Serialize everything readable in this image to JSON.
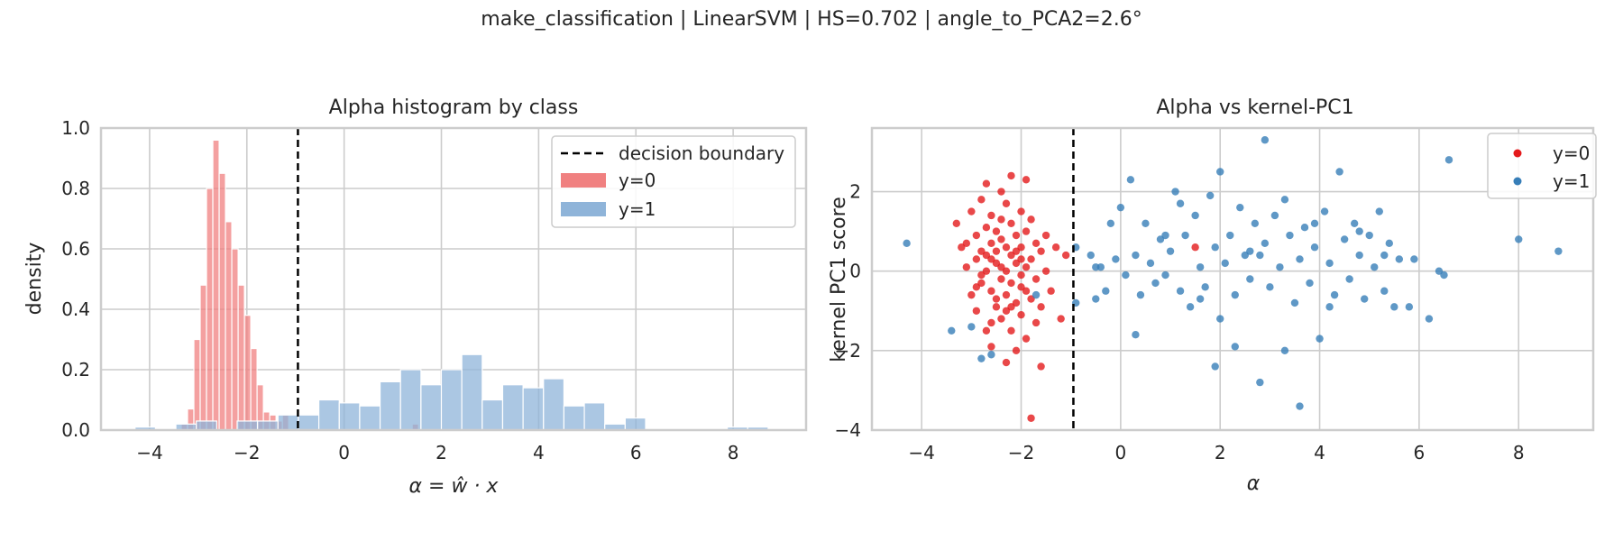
{
  "suptitle": "make_classification | LinearSVM | HS=0.702 | angle_to_PCA2=2.6°",
  "colors": {
    "class0_bar": "#f08080",
    "class1_bar": "#8fb4d9",
    "class0_point": "#e41a1c",
    "class1_point": "#377eb8",
    "grid": "#cccccc",
    "boundary": "#000000"
  },
  "chart_data": [
    {
      "type": "histogram",
      "title": "Alpha histogram by class",
      "xlabel": "α = ŵ · x",
      "ylabel": "density",
      "xlim": [
        -5.0,
        9.5
      ],
      "ylim": [
        0,
        1.0
      ],
      "xticks": [
        -4,
        -2,
        0,
        2,
        4,
        6,
        8
      ],
      "xtick_labels": [
        "−4",
        "−2",
        "0",
        "2",
        "4",
        "6",
        "8"
      ],
      "yticks": [
        0,
        0.2,
        0.4,
        0.6,
        0.8,
        1.0
      ],
      "ytick_labels": [
        "0.0",
        "0.2",
        "0.4",
        "0.6",
        "0.8",
        "1.0"
      ],
      "grid": true,
      "legend_position": "top-right",
      "decision_boundary_x": -0.95,
      "legend": {
        "boundary_label": "decision boundary"
      },
      "series": [
        {
          "name": "y=0",
          "bins": [
            {
              "x0": -3.35,
              "x1": -3.22,
              "y": 0.02
            },
            {
              "x0": -3.22,
              "x1": -3.09,
              "y": 0.07
            },
            {
              "x0": -3.09,
              "x1": -2.96,
              "y": 0.3
            },
            {
              "x0": -2.96,
              "x1": -2.83,
              "y": 0.48
            },
            {
              "x0": -2.83,
              "x1": -2.7,
              "y": 0.8
            },
            {
              "x0": -2.7,
              "x1": -2.57,
              "y": 0.96
            },
            {
              "x0": -2.57,
              "x1": -2.44,
              "y": 0.85
            },
            {
              "x0": -2.44,
              "x1": -2.31,
              "y": 0.69
            },
            {
              "x0": -2.31,
              "x1": -2.18,
              "y": 0.6
            },
            {
              "x0": -2.18,
              "x1": -2.05,
              "y": 0.48
            },
            {
              "x0": -2.05,
              "x1": -1.92,
              "y": 0.38
            },
            {
              "x0": -1.92,
              "x1": -1.79,
              "y": 0.27
            },
            {
              "x0": -1.79,
              "x1": -1.66,
              "y": 0.15
            },
            {
              "x0": -1.66,
              "x1": -1.53,
              "y": 0.06
            },
            {
              "x0": -1.53,
              "x1": -1.4,
              "y": 0.05
            },
            {
              "x0": -1.4,
              "x1": -1.27,
              "y": 0.03
            },
            {
              "x0": -1.27,
              "x1": -1.14,
              "y": 0.05
            },
            {
              "x0": 1.4,
              "x1": 1.53,
              "y": 0.02
            }
          ]
        },
        {
          "name": "y=1",
          "bins": [
            {
              "x0": -4.3,
              "x1": -3.88,
              "y": 0.01
            },
            {
              "x0": -3.88,
              "x1": -3.46,
              "y": 0.0
            },
            {
              "x0": -3.46,
              "x1": -3.04,
              "y": 0.02
            },
            {
              "x0": -3.04,
              "x1": -2.62,
              "y": 0.03
            },
            {
              "x0": -2.62,
              "x1": -2.2,
              "y": 0.0
            },
            {
              "x0": -2.2,
              "x1": -1.78,
              "y": 0.03
            },
            {
              "x0": -1.78,
              "x1": -1.36,
              "y": 0.03
            },
            {
              "x0": -1.36,
              "x1": -0.94,
              "y": 0.05
            },
            {
              "x0": -0.94,
              "x1": -0.52,
              "y": 0.05
            },
            {
              "x0": -0.52,
              "x1": -0.1,
              "y": 0.1
            },
            {
              "x0": -0.1,
              "x1": 0.32,
              "y": 0.09
            },
            {
              "x0": 0.32,
              "x1": 0.74,
              "y": 0.08
            },
            {
              "x0": 0.74,
              "x1": 1.16,
              "y": 0.16
            },
            {
              "x0": 1.16,
              "x1": 1.58,
              "y": 0.2
            },
            {
              "x0": 1.58,
              "x1": 2.0,
              "y": 0.15
            },
            {
              "x0": 2.0,
              "x1": 2.42,
              "y": 0.2
            },
            {
              "x0": 2.42,
              "x1": 2.84,
              "y": 0.25
            },
            {
              "x0": 2.84,
              "x1": 3.26,
              "y": 0.1
            },
            {
              "x0": 3.26,
              "x1": 3.68,
              "y": 0.15
            },
            {
              "x0": 3.68,
              "x1": 4.1,
              "y": 0.14
            },
            {
              "x0": 4.1,
              "x1": 4.52,
              "y": 0.17
            },
            {
              "x0": 4.52,
              "x1": 4.94,
              "y": 0.08
            },
            {
              "x0": 4.94,
              "x1": 5.36,
              "y": 0.09
            },
            {
              "x0": 5.36,
              "x1": 5.78,
              "y": 0.02
            },
            {
              "x0": 5.78,
              "x1": 6.2,
              "y": 0.04
            },
            {
              "x0": 6.2,
              "x1": 6.62,
              "y": 0.0
            },
            {
              "x0": 7.88,
              "x1": 8.3,
              "y": 0.01
            },
            {
              "x0": 8.3,
              "x1": 8.72,
              "y": 0.01
            }
          ]
        }
      ]
    },
    {
      "type": "scatter",
      "title": "Alpha vs kernel-PC1",
      "xlabel": "α",
      "ylabel": "kernel PC1 score",
      "xlim": [
        -5.0,
        9.5
      ],
      "ylim": [
        -4.0,
        3.6
      ],
      "xticks": [
        -4,
        -2,
        0,
        2,
        4,
        6,
        8
      ],
      "xtick_labels": [
        "−4",
        "−2",
        "0",
        "2",
        "4",
        "6",
        "8"
      ],
      "yticks": [
        -4,
        -2,
        0,
        2
      ],
      "ytick_labels": [
        "−4",
        "−2",
        "0",
        "2"
      ],
      "grid": true,
      "legend_position": "top-right",
      "decision_boundary_x": -0.95,
      "series": [
        {
          "name": "y=0",
          "points": [
            [
              -3.3,
              1.2
            ],
            [
              -3.2,
              0.6
            ],
            [
              -3.1,
              0.1
            ],
            [
              -3.0,
              1.5
            ],
            [
              -3.0,
              -0.6
            ],
            [
              -2.9,
              0.9
            ],
            [
              -2.9,
              0.3
            ],
            [
              -2.9,
              -1.0
            ],
            [
              -2.8,
              1.8
            ],
            [
              -2.8,
              0.5
            ],
            [
              -2.8,
              -0.3
            ],
            [
              -2.7,
              1.1
            ],
            [
              -2.7,
              0.0
            ],
            [
              -2.7,
              -1.5
            ],
            [
              -2.7,
              2.2
            ],
            [
              -2.6,
              0.7
            ],
            [
              -2.6,
              -0.5
            ],
            [
              -2.6,
              1.4
            ],
            [
              -2.6,
              -1.9
            ],
            [
              -2.5,
              0.2
            ],
            [
              -2.5,
              1.0
            ],
            [
              -2.5,
              -0.9
            ],
            [
              -2.5,
              0.5
            ],
            [
              -2.4,
              2.0
            ],
            [
              -2.4,
              -0.2
            ],
            [
              -2.4,
              1.3
            ],
            [
              -2.4,
              -1.2
            ],
            [
              -2.4,
              0.8
            ],
            [
              -2.3,
              0.0
            ],
            [
              -2.3,
              1.7
            ],
            [
              -2.3,
              -0.6
            ],
            [
              -2.3,
              -2.3
            ],
            [
              -2.2,
              0.4
            ],
            [
              -2.2,
              1.2
            ],
            [
              -2.2,
              -1.5
            ],
            [
              -2.2,
              2.4
            ],
            [
              -2.2,
              -0.3
            ],
            [
              -2.1,
              0.9
            ],
            [
              -2.1,
              -0.8
            ],
            [
              -2.1,
              0.2
            ],
            [
              -2.1,
              -2.0
            ],
            [
              -2.0,
              1.5
            ],
            [
              -2.0,
              0.6
            ],
            [
              -2.0,
              -0.4
            ],
            [
              -2.0,
              -1.1
            ],
            [
              -1.9,
              0.1
            ],
            [
              -1.9,
              1.0
            ],
            [
              -1.9,
              -1.7
            ],
            [
              -1.9,
              2.3
            ],
            [
              -1.8,
              0.3
            ],
            [
              -1.8,
              -0.7
            ],
            [
              -1.8,
              1.3
            ],
            [
              -1.8,
              -3.7
            ],
            [
              -1.7,
              0.7
            ],
            [
              -1.7,
              -0.2
            ],
            [
              -1.7,
              -1.3
            ],
            [
              -1.6,
              0.5
            ],
            [
              -1.6,
              -0.9
            ],
            [
              -1.6,
              -2.4
            ],
            [
              -1.5,
              0.0
            ],
            [
              -1.5,
              0.9
            ],
            [
              -1.4,
              -0.5
            ],
            [
              -1.3,
              0.6
            ],
            [
              -1.2,
              -1.2
            ],
            [
              -1.1,
              0.4
            ],
            [
              -2.8,
              -0.1
            ],
            [
              -2.6,
              0.3
            ],
            [
              -2.5,
              -0.7
            ],
            [
              -2.3,
              0.6
            ],
            [
              -2.2,
              -0.9
            ],
            [
              -2.1,
              0.5
            ],
            [
              -2.0,
              -0.1
            ],
            [
              -1.9,
              -0.5
            ],
            [
              -2.4,
              0.1
            ],
            [
              -2.7,
              0.4
            ],
            [
              -2.9,
              -0.4
            ],
            [
              -3.1,
              0.7
            ],
            [
              -2.6,
              -1.3
            ],
            [
              -2.3,
              -1.0
            ],
            [
              -2.0,
              0.3
            ],
            [
              1.5,
              0.6
            ]
          ]
        },
        {
          "name": "y=1",
          "points": [
            [
              -4.3,
              0.7
            ],
            [
              -3.4,
              -1.5
            ],
            [
              -3.0,
              -1.4
            ],
            [
              -2.8,
              -2.2
            ],
            [
              -2.6,
              -2.1
            ],
            [
              -1.7,
              -0.6
            ],
            [
              -0.9,
              0.6
            ],
            [
              -0.9,
              -0.8
            ],
            [
              -0.6,
              0.4
            ],
            [
              -0.5,
              -0.7
            ],
            [
              -0.4,
              0.1
            ],
            [
              -0.3,
              -0.5
            ],
            [
              -0.2,
              1.2
            ],
            [
              -0.1,
              0.3
            ],
            [
              0.0,
              1.6
            ],
            [
              0.1,
              -0.1
            ],
            [
              0.3,
              -1.6
            ],
            [
              0.3,
              0.4
            ],
            [
              0.4,
              -0.6
            ],
            [
              0.5,
              1.2
            ],
            [
              0.6,
              0.2
            ],
            [
              0.7,
              -0.3
            ],
            [
              0.8,
              0.8
            ],
            [
              0.9,
              -0.1
            ],
            [
              1.0,
              0.5
            ],
            [
              1.1,
              2.0
            ],
            [
              1.2,
              -0.5
            ],
            [
              1.3,
              0.9
            ],
            [
              1.4,
              -0.9
            ],
            [
              1.5,
              1.4
            ],
            [
              1.6,
              0.1
            ],
            [
              1.7,
              -0.4
            ],
            [
              1.8,
              1.9
            ],
            [
              1.9,
              0.6
            ],
            [
              2.0,
              -1.2
            ],
            [
              2.0,
              2.5
            ],
            [
              2.1,
              0.2
            ],
            [
              2.2,
              0.9
            ],
            [
              2.3,
              -0.6
            ],
            [
              2.4,
              1.6
            ],
            [
              2.5,
              0.4
            ],
            [
              2.6,
              -0.2
            ],
            [
              2.7,
              1.2
            ],
            [
              2.8,
              -2.8
            ],
            [
              2.9,
              0.7
            ],
            [
              2.9,
              3.3
            ],
            [
              3.0,
              -0.4
            ],
            [
              3.1,
              1.4
            ],
            [
              3.2,
              0.1
            ],
            [
              3.3,
              -2.0
            ],
            [
              3.4,
              0.9
            ],
            [
              3.5,
              -0.8
            ],
            [
              3.6,
              0.3
            ],
            [
              3.6,
              -3.4
            ],
            [
              3.7,
              1.1
            ],
            [
              3.8,
              -0.3
            ],
            [
              3.9,
              0.6
            ],
            [
              4.0,
              -1.7
            ],
            [
              4.1,
              1.5
            ],
            [
              4.2,
              0.2
            ],
            [
              4.3,
              -0.6
            ],
            [
              4.4,
              2.5
            ],
            [
              4.5,
              0.8
            ],
            [
              4.6,
              -0.2
            ],
            [
              4.7,
              1.2
            ],
            [
              4.8,
              0.4
            ],
            [
              4.9,
              -0.7
            ],
            [
              5.0,
              0.9
            ],
            [
              5.1,
              0.1
            ],
            [
              5.2,
              1.5
            ],
            [
              5.3,
              -0.5
            ],
            [
              5.4,
              0.7
            ],
            [
              5.5,
              -0.9
            ],
            [
              5.6,
              0.3
            ],
            [
              5.8,
              -0.9
            ],
            [
              5.9,
              0.3
            ],
            [
              6.2,
              -1.2
            ],
            [
              6.4,
              0.0
            ],
            [
              6.5,
              -0.1
            ],
            [
              6.6,
              2.8
            ],
            [
              8.0,
              0.8
            ],
            [
              8.8,
              0.5
            ],
            [
              1.9,
              -2.4
            ],
            [
              2.3,
              -1.9
            ],
            [
              0.9,
              0.9
            ],
            [
              1.6,
              -0.7
            ],
            [
              2.6,
              0.5
            ],
            [
              3.3,
              1.8
            ],
            [
              4.2,
              -0.9
            ],
            [
              0.2,
              2.3
            ],
            [
              -0.5,
              0.1
            ],
            [
              1.2,
              1.7
            ],
            [
              2.8,
              0.4
            ],
            [
              3.9,
              1.2
            ],
            [
              4.8,
              1.0
            ],
            [
              5.3,
              0.4
            ]
          ]
        }
      ]
    }
  ]
}
